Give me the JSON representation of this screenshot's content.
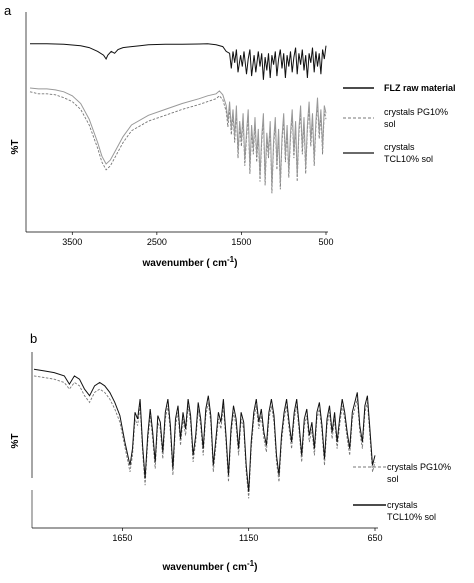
{
  "chart_data": [
    {
      "type": "line",
      "panel_label": "a",
      "ylabel": "%T",
      "xlabel": "wavenumber ( cm",
      "xlabel_superscript": "-1",
      "xlabel_suffix": ")",
      "x_direction": "reversed",
      "xlim": [
        4000,
        500
      ],
      "x_ticks": [
        "3500",
        "2500",
        "1500",
        "500"
      ],
      "x_tick_values": [
        3500,
        2500,
        1500,
        500
      ],
      "grid": false,
      "legend_position": "right",
      "series": [
        {
          "name": "FLZ raw material",
          "style": "solid",
          "color": "#111111",
          "x": [
            4000,
            3800,
            3600,
            3400,
            3300,
            3200,
            3130,
            3100,
            3080,
            3040,
            3000,
            2960,
            2900,
            2800,
            2700,
            2600,
            2400,
            2200,
            2000,
            1900,
            1800,
            1720,
            1680,
            1640,
            1620,
            1600,
            1580,
            1560,
            1540,
            1510,
            1490,
            1470,
            1440,
            1420,
            1400,
            1380,
            1350,
            1330,
            1300,
            1280,
            1260,
            1240,
            1220,
            1200,
            1180,
            1160,
            1140,
            1120,
            1100,
            1080,
            1060,
            1040,
            1020,
            1000,
            980,
            960,
            940,
            920,
            900,
            880,
            860,
            840,
            820,
            800,
            780,
            760,
            740,
            720,
            700,
            680,
            660,
            640,
            620,
            600,
            580,
            560,
            540,
            520,
            500
          ],
          "y": [
            96,
            96,
            95.5,
            94,
            92,
            88,
            84,
            80,
            84,
            88,
            86,
            90,
            92,
            93,
            94,
            95,
            95.5,
            95.5,
            95.8,
            96,
            95,
            93,
            88,
            86,
            70,
            88,
            76,
            90,
            66,
            84,
            72,
            88,
            64,
            80,
            90,
            62,
            84,
            66,
            88,
            72,
            86,
            58,
            82,
            68,
            86,
            60,
            84,
            74,
            88,
            62,
            80,
            90,
            70,
            86,
            60,
            84,
            72,
            88,
            66,
            82,
            92,
            64,
            86,
            74,
            90,
            68,
            84,
            60,
            86,
            76,
            92,
            66,
            88,
            72,
            86,
            64,
            90,
            80,
            94
          ]
        },
        {
          "name": "crystals PG10% sol",
          "style": "dashed",
          "color": "#777777",
          "x": [
            4000,
            3900,
            3800,
            3700,
            3600,
            3500,
            3400,
            3300,
            3200,
            3150,
            3100,
            3050,
            3000,
            2900,
            2800,
            2600,
            2400,
            2200,
            2000,
            1900,
            1800,
            1760,
            1720,
            1680,
            1660,
            1640,
            1620,
            1600,
            1580,
            1560,
            1540,
            1520,
            1500,
            1480,
            1460,
            1440,
            1420,
            1400,
            1380,
            1360,
            1340,
            1320,
            1300,
            1280,
            1260,
            1240,
            1220,
            1200,
            1180,
            1160,
            1140,
            1120,
            1100,
            1080,
            1060,
            1040,
            1020,
            1000,
            980,
            960,
            940,
            920,
            900,
            880,
            860,
            840,
            820,
            800,
            780,
            760,
            740,
            720,
            700,
            680,
            660,
            640,
            620,
            600,
            580,
            560,
            540,
            520,
            500
          ],
          "y": [
            62,
            61,
            61,
            60.5,
            59,
            57,
            53,
            45,
            33,
            26,
            22,
            24,
            28,
            36,
            42,
            47,
            50,
            53,
            55.5,
            57,
            58.5,
            60,
            58,
            52,
            44,
            54,
            40,
            50,
            36,
            52,
            28,
            44,
            34,
            48,
            24,
            38,
            50,
            20,
            42,
            30,
            46,
            26,
            40,
            16,
            36,
            48,
            14,
            38,
            28,
            44,
            10,
            34,
            46,
            22,
            40,
            12,
            36,
            48,
            26,
            42,
            18,
            38,
            50,
            28,
            44,
            16,
            40,
            52,
            30,
            46,
            20,
            42,
            54,
            34,
            48,
            24,
            44,
            56,
            38,
            50,
            30,
            52,
            48
          ]
        },
        {
          "name": "crystals TCL10% sol",
          "style": "solid",
          "color": "#999999",
          "x": [
            4000,
            3900,
            3800,
            3700,
            3600,
            3500,
            3400,
            3300,
            3200,
            3150,
            3100,
            3050,
            3000,
            2900,
            2800,
            2600,
            2400,
            2200,
            2000,
            1900,
            1800,
            1760,
            1720,
            1680,
            1660,
            1640,
            1620,
            1600,
            1580,
            1560,
            1540,
            1520,
            1500,
            1480,
            1460,
            1440,
            1420,
            1400,
            1380,
            1360,
            1340,
            1320,
            1300,
            1280,
            1260,
            1240,
            1220,
            1200,
            1180,
            1160,
            1140,
            1120,
            1100,
            1080,
            1060,
            1040,
            1020,
            1000,
            980,
            960,
            940,
            920,
            900,
            880,
            860,
            840,
            820,
            800,
            780,
            760,
            740,
            720,
            700,
            680,
            660,
            640,
            620,
            600,
            580,
            560,
            540,
            520,
            500
          ],
          "y": [
            64,
            63.5,
            63.5,
            63,
            62,
            60,
            56,
            48,
            36,
            29,
            25,
            27,
            31,
            39,
            45,
            50,
            53,
            56,
            58.5,
            60,
            61,
            62.5,
            60.5,
            55,
            47,
            57,
            43,
            53,
            39,
            55,
            31,
            47,
            37,
            51,
            27,
            41,
            53,
            23,
            45,
            33,
            49,
            29,
            43,
            19,
            39,
            51,
            17,
            41,
            31,
            47,
            13,
            37,
            49,
            25,
            43,
            15,
            39,
            51,
            29,
            45,
            21,
            41,
            53,
            31,
            47,
            19,
            43,
            55,
            33,
            49,
            23,
            45,
            57,
            37,
            51,
            27,
            47,
            59,
            41,
            53,
            33,
            55,
            51
          ]
        }
      ]
    },
    {
      "type": "line",
      "panel_label": "b",
      "ylabel": "%T",
      "xlabel": "wavenumber ( cm",
      "xlabel_superscript": "-1",
      "xlabel_suffix": ")",
      "x_direction": "reversed",
      "xlim": [
        2000,
        650
      ],
      "x_ticks": [
        "1650",
        "1150",
        "650"
      ],
      "x_tick_values": [
        1650,
        1150,
        650
      ],
      "grid": false,
      "legend_position": "bottom-right",
      "series": [
        {
          "name": "crystals PG10% sol",
          "style": "dashed",
          "color": "#777777",
          "x": [
            2000,
            1960,
            1920,
            1880,
            1860,
            1840,
            1820,
            1800,
            1780,
            1760,
            1740,
            1720,
            1700,
            1680,
            1660,
            1640,
            1620,
            1610,
            1600,
            1590,
            1580,
            1570,
            1560,
            1550,
            1540,
            1530,
            1520,
            1510,
            1500,
            1490,
            1480,
            1470,
            1460,
            1450,
            1440,
            1430,
            1420,
            1410,
            1400,
            1390,
            1380,
            1370,
            1360,
            1350,
            1340,
            1330,
            1320,
            1310,
            1300,
            1290,
            1280,
            1270,
            1260,
            1250,
            1240,
            1230,
            1220,
            1210,
            1200,
            1190,
            1180,
            1170,
            1160,
            1150,
            1140,
            1130,
            1120,
            1110,
            1100,
            1090,
            1080,
            1070,
            1060,
            1050,
            1040,
            1030,
            1020,
            1010,
            1000,
            990,
            980,
            970,
            960,
            950,
            940,
            930,
            920,
            910,
            900,
            890,
            880,
            870,
            860,
            850,
            840,
            830,
            820,
            810,
            800,
            790,
            780,
            770,
            760,
            750,
            740,
            730,
            720,
            710,
            700,
            690,
            680,
            670,
            660,
            650
          ],
          "y": [
            88,
            87,
            86,
            84,
            80,
            84,
            82,
            76,
            72,
            78,
            80,
            78,
            74,
            68,
            60,
            45,
            30,
            40,
            62,
            58,
            70,
            42,
            22,
            48,
            64,
            50,
            32,
            60,
            56,
            38,
            62,
            70,
            54,
            28,
            58,
            66,
            46,
            62,
            52,
            70,
            60,
            36,
            48,
            68,
            58,
            40,
            64,
            72,
            60,
            30,
            46,
            62,
            56,
            70,
            48,
            24,
            52,
            66,
            58,
            40,
            62,
            56,
            30,
            14,
            44,
            62,
            70,
            56,
            64,
            50,
            42,
            62,
            70,
            60,
            36,
            24,
            48,
            62,
            70,
            56,
            44,
            62,
            70,
            54,
            36,
            58,
            64,
            48,
            56,
            40,
            62,
            68,
            54,
            34,
            58,
            66,
            50,
            62,
            44,
            58,
            70,
            62,
            50,
            40,
            62,
            68,
            74,
            54,
            44,
            66,
            72,
            52,
            30,
            36
          ]
        },
        {
          "name": "crystals TCL10% sol",
          "style": "solid",
          "color": "#111111",
          "x": [
            2000,
            1960,
            1920,
            1880,
            1860,
            1840,
            1820,
            1800,
            1780,
            1760,
            1740,
            1720,
            1700,
            1680,
            1660,
            1640,
            1620,
            1610,
            1600,
            1590,
            1580,
            1570,
            1560,
            1550,
            1540,
            1530,
            1520,
            1510,
            1500,
            1490,
            1480,
            1470,
            1460,
            1450,
            1440,
            1430,
            1420,
            1410,
            1400,
            1390,
            1380,
            1370,
            1360,
            1350,
            1340,
            1330,
            1320,
            1310,
            1300,
            1290,
            1280,
            1270,
            1260,
            1250,
            1240,
            1230,
            1220,
            1210,
            1200,
            1190,
            1180,
            1170,
            1160,
            1150,
            1140,
            1130,
            1120,
            1110,
            1100,
            1090,
            1080,
            1070,
            1060,
            1050,
            1040,
            1030,
            1020,
            1010,
            1000,
            990,
            980,
            970,
            960,
            950,
            940,
            930,
            920,
            910,
            900,
            890,
            880,
            870,
            860,
            850,
            840,
            830,
            820,
            810,
            800,
            790,
            780,
            770,
            760,
            750,
            740,
            730,
            720,
            710,
            700,
            690,
            680,
            670,
            660,
            650
          ],
          "y": [
            92,
            91,
            90,
            88,
            83,
            88,
            86,
            80,
            76,
            82,
            84,
            82,
            78,
            72,
            64,
            48,
            34,
            44,
            66,
            62,
            74,
            46,
            26,
            52,
            68,
            54,
            36,
            64,
            60,
            42,
            66,
            74,
            58,
            32,
            62,
            70,
            50,
            66,
            56,
            74,
            64,
            40,
            52,
            72,
            62,
            44,
            68,
            76,
            64,
            34,
            50,
            66,
            60,
            74,
            52,
            28,
            56,
            70,
            62,
            44,
            66,
            60,
            34,
            18,
            48,
            66,
            74,
            60,
            68,
            54,
            46,
            66,
            74,
            64,
            40,
            28,
            52,
            66,
            74,
            60,
            48,
            66,
            74,
            58,
            40,
            62,
            68,
            52,
            60,
            44,
            66,
            72,
            58,
            38,
            62,
            70,
            54,
            66,
            48,
            62,
            74,
            66,
            54,
            44,
            66,
            72,
            78,
            58,
            48,
            70,
            76,
            56,
            34,
            40
          ]
        }
      ]
    }
  ]
}
